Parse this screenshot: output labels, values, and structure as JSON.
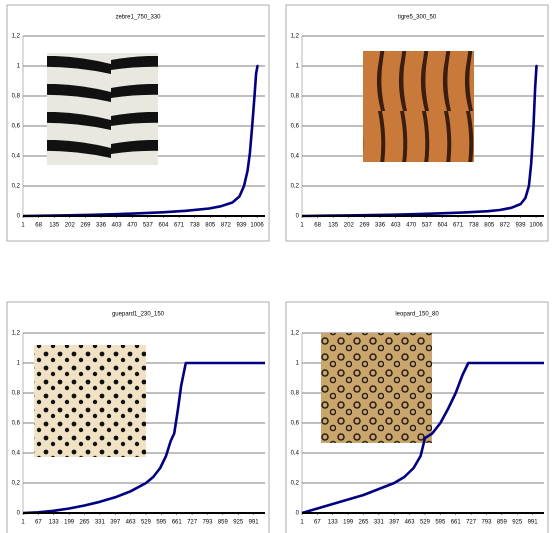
{
  "chart_data": [
    {
      "type": "line",
      "title": "zebre1_750_330",
      "color": "#000080",
      "x": [
        1,
        100,
        200,
        300,
        400,
        500,
        600,
        700,
        800,
        850,
        900,
        930,
        950,
        965,
        975,
        985,
        995,
        1002,
        1008,
        1012
      ],
      "values": [
        0,
        0.002,
        0.005,
        0.008,
        0.012,
        0.018,
        0.025,
        0.035,
        0.05,
        0.065,
        0.09,
        0.13,
        0.2,
        0.3,
        0.42,
        0.6,
        0.8,
        0.95,
        1,
        1
      ],
      "xlim": [
        1,
        1040
      ],
      "xticks": [
        1,
        68,
        135,
        202,
        269,
        336,
        403,
        470,
        537,
        604,
        671,
        738,
        805,
        872,
        939,
        1006
      ],
      "ylim": [
        0,
        1.2
      ],
      "yticks": [
        0,
        {
          "value": 0.2,
          "label": "0,2"
        },
        {
          "value": 0.4,
          "label": "0,4"
        },
        {
          "value": 0.6,
          "label": "0,6"
        },
        {
          "value": 0.8,
          "label": "0,8"
        },
        1,
        {
          "value": 1.2,
          "label": "1,2"
        }
      ],
      "grid": true
    },
    {
      "type": "line",
      "title": "tigre5_300_50",
      "color": "#000080",
      "x": [
        1,
        100,
        200,
        300,
        400,
        500,
        600,
        700,
        800,
        850,
        900,
        940,
        960,
        975,
        985,
        995,
        1002,
        1008,
        1012
      ],
      "values": [
        0,
        0.002,
        0.004,
        0.006,
        0.009,
        0.013,
        0.018,
        0.024,
        0.032,
        0.04,
        0.055,
        0.08,
        0.12,
        0.2,
        0.35,
        0.6,
        0.85,
        1,
        1
      ],
      "xlim": [
        1,
        1040
      ],
      "xticks": [
        1,
        68,
        135,
        202,
        269,
        336,
        403,
        470,
        537,
        604,
        671,
        738,
        805,
        872,
        939,
        1006
      ],
      "ylim": [
        0,
        1.2
      ],
      "yticks": [
        0,
        {
          "value": 0.2,
          "label": "0,2"
        },
        {
          "value": 0.4,
          "label": "0,4"
        },
        {
          "value": 0.6,
          "label": "0,6"
        },
        {
          "value": 0.8,
          "label": "0,8"
        },
        1,
        {
          "value": 1.2,
          "label": "1,2"
        }
      ],
      "grid": true
    },
    {
      "type": "line",
      "title": "guepard1_230_150",
      "color": "#000080",
      "x": [
        1,
        67,
        133,
        199,
        265,
        331,
        397,
        463,
        529,
        560,
        590,
        615,
        635,
        650,
        665,
        680,
        700,
        750,
        850,
        950,
        1040
      ],
      "values": [
        0,
        0.005,
        0.015,
        0.03,
        0.05,
        0.075,
        0.105,
        0.145,
        0.2,
        0.24,
        0.3,
        0.38,
        0.48,
        0.53,
        0.68,
        0.85,
        1,
        1,
        1,
        1,
        1
      ],
      "xlim": [
        1,
        1040
      ],
      "xticks": [
        1,
        67,
        133,
        199,
        265,
        331,
        397,
        463,
        529,
        595,
        661,
        727,
        793,
        859,
        925,
        991
      ],
      "ylim": [
        0,
        1.2
      ],
      "yticks": [
        0,
        {
          "value": 0.2,
          "label": "0,2"
        },
        {
          "value": 0.4,
          "label": "0,4"
        },
        {
          "value": 0.6,
          "label": "0,6"
        },
        {
          "value": 0.8,
          "label": "0,8"
        },
        1,
        {
          "value": 1.2,
          "label": "1,2"
        }
      ],
      "grid": true
    },
    {
      "type": "line",
      "title": "leopard_150_80",
      "color": "#000080",
      "x": [
        1,
        67,
        133,
        199,
        265,
        331,
        397,
        440,
        480,
        510,
        529,
        560,
        595,
        630,
        661,
        690,
        715,
        750,
        850,
        950,
        1040
      ],
      "values": [
        0,
        0.03,
        0.06,
        0.09,
        0.12,
        0.16,
        0.2,
        0.24,
        0.3,
        0.38,
        0.5,
        0.53,
        0.6,
        0.7,
        0.8,
        0.92,
        1,
        1,
        1,
        1,
        1
      ],
      "xlim": [
        1,
        1040
      ],
      "xticks": [
        1,
        67,
        133,
        199,
        265,
        331,
        397,
        463,
        529,
        595,
        661,
        727,
        793,
        859,
        925,
        991
      ],
      "ylim": [
        0,
        1.2
      ],
      "yticks": [
        0,
        {
          "value": 0.2,
          "label": "0,2"
        },
        {
          "value": 0.4,
          "label": "0,4"
        },
        {
          "value": 0.6,
          "label": "0,6"
        },
        {
          "value": 0.8,
          "label": "0,8"
        },
        1,
        {
          "value": 1.2,
          "label": "1,2"
        }
      ],
      "grid": true
    }
  ]
}
